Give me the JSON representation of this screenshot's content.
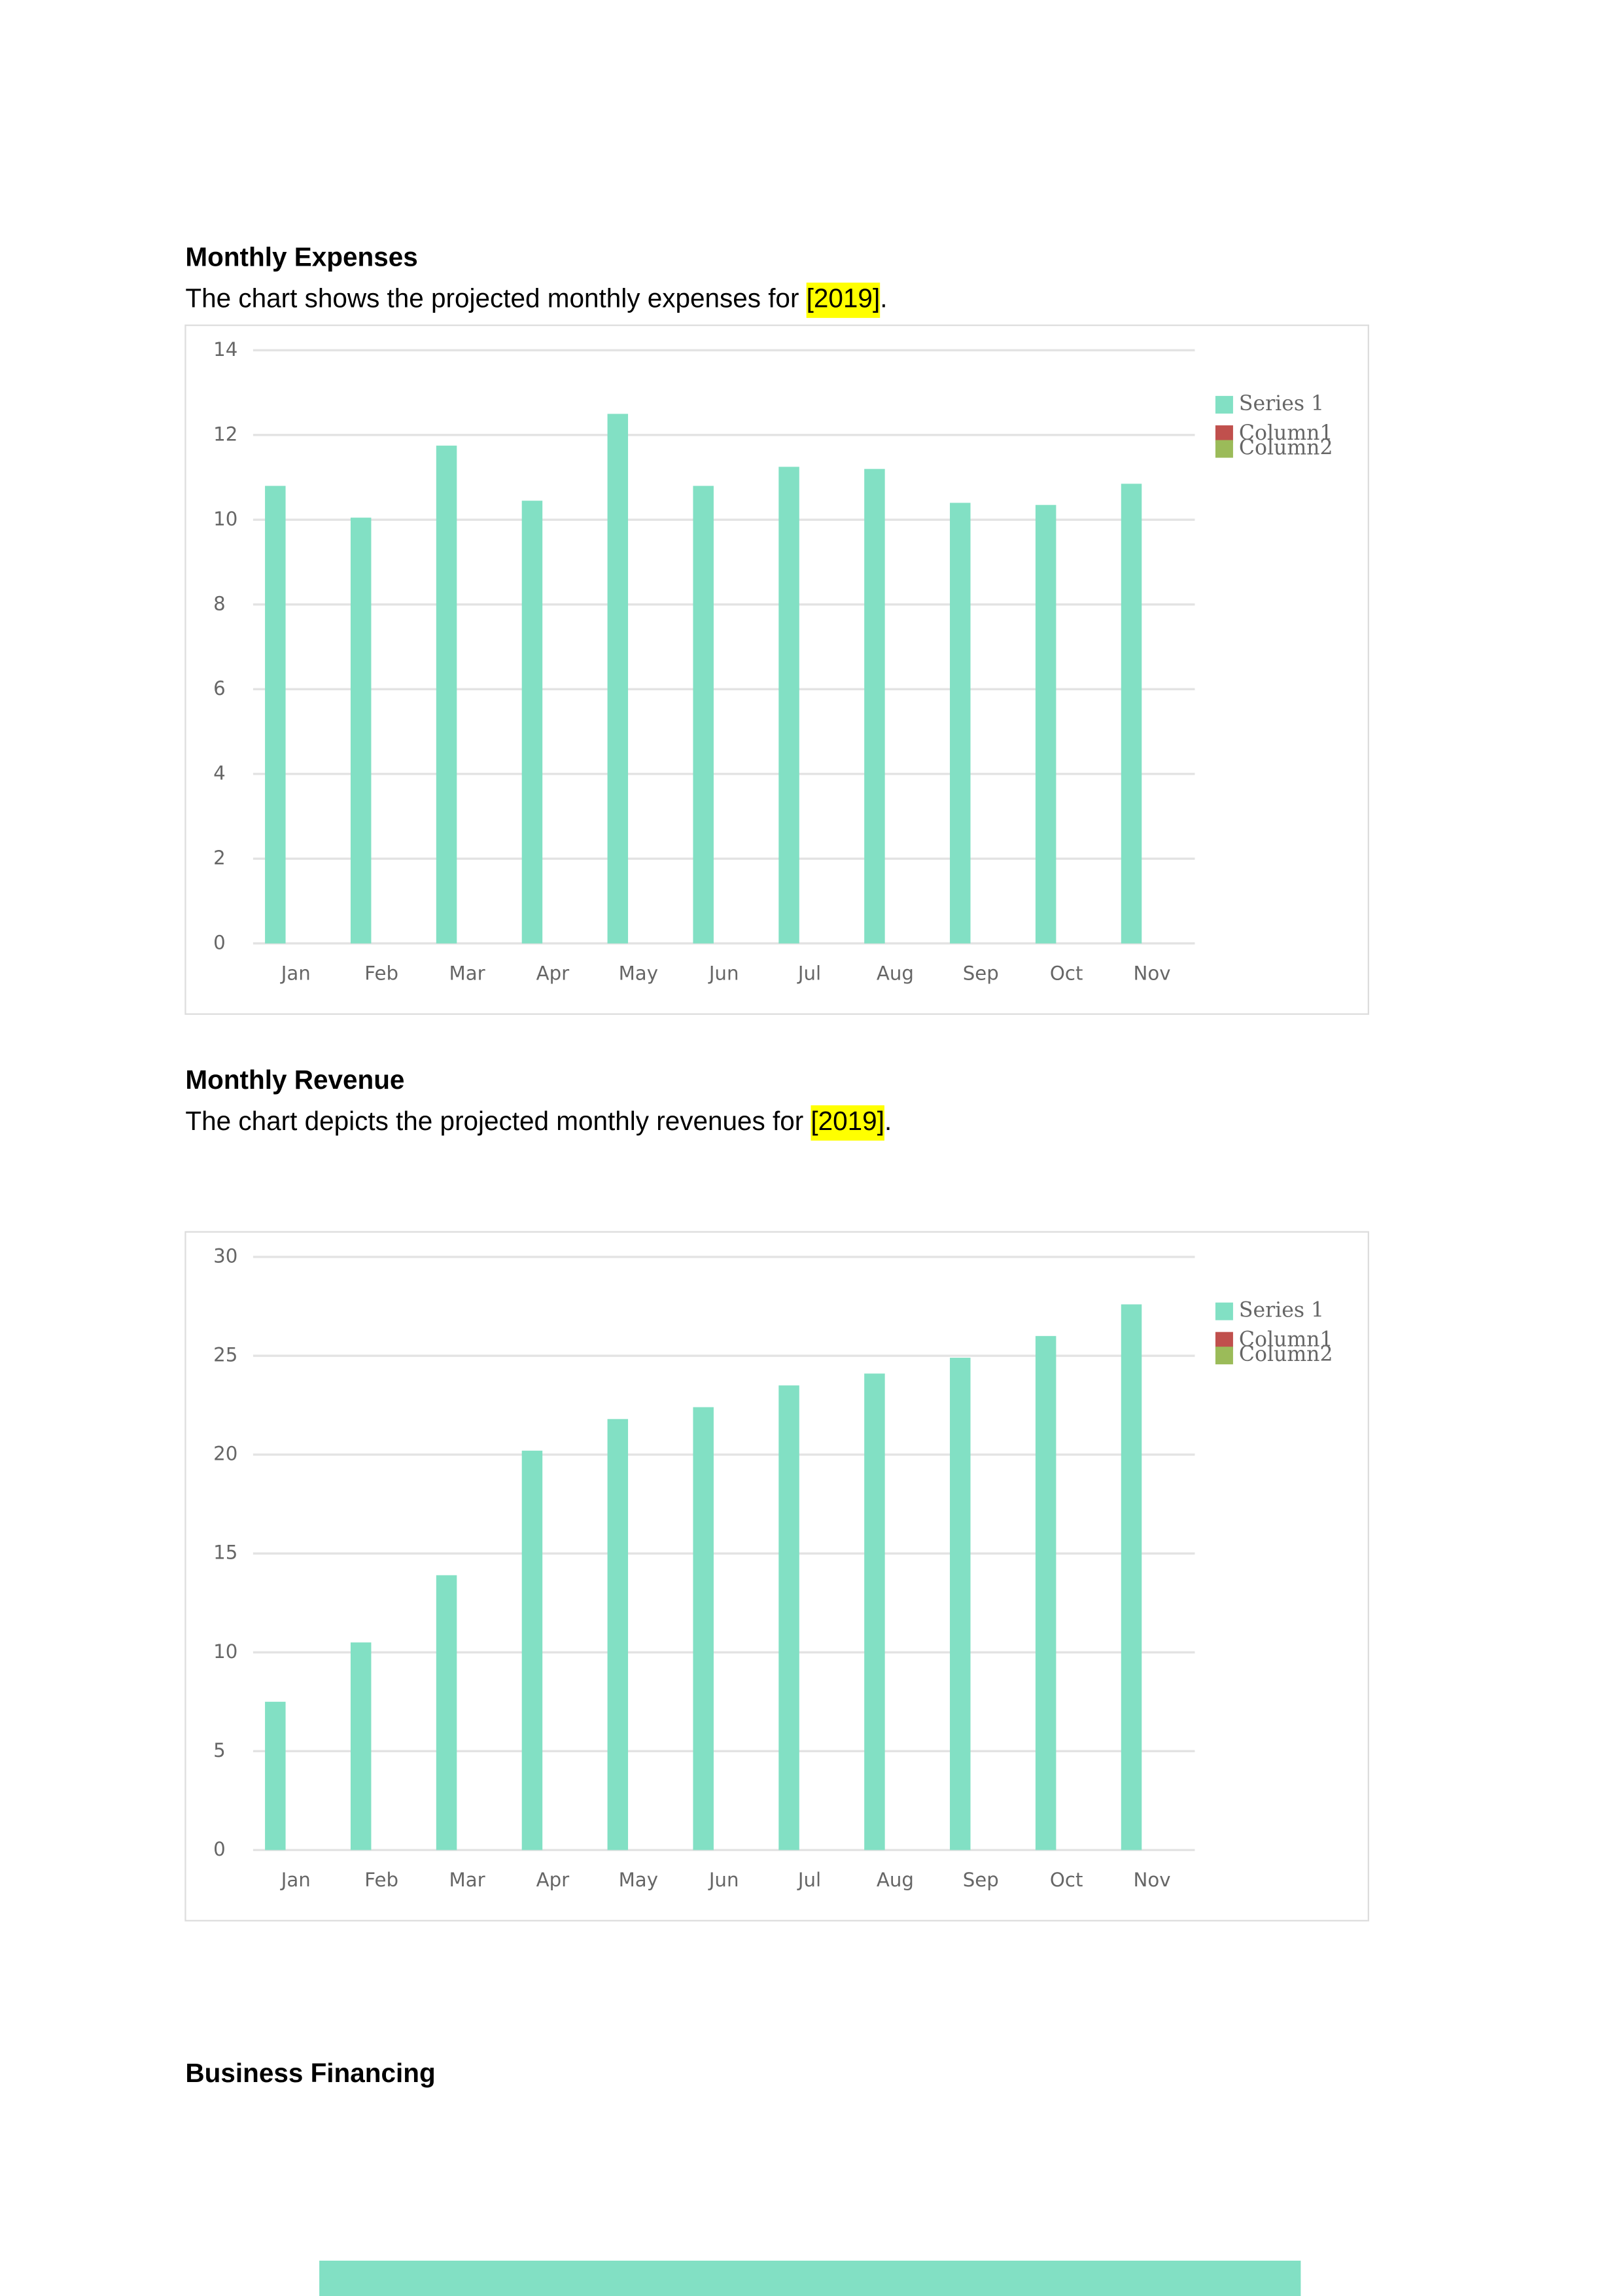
{
  "sections": [
    {
      "heading": "Monthly Expenses",
      "text": "The chart shows the projected monthly expenses for ",
      "highlight": "[2019]",
      "end": "."
    },
    {
      "heading": "Monthly Revenue",
      "text": "The chart depicts the projected monthly revenues for ",
      "highlight": "[2019]",
      "end": "."
    },
    {
      "heading": "Business Financing"
    }
  ],
  "chart_data": [
    {
      "type": "bar",
      "categories": [
        "Jan",
        "Feb",
        "Mar",
        "Apr",
        "May",
        "Jun",
        "Jul",
        "Aug",
        "Sep",
        "Oct",
        "Nov"
      ],
      "series": [
        {
          "name": "Series 1",
          "color": "#82e0c4",
          "values": [
            10.8,
            10.05,
            11.75,
            10.45,
            12.5,
            10.8,
            11.25,
            11.2,
            10.4,
            10.35,
            10.85
          ]
        },
        {
          "name": "Column1",
          "color": "#c0504d",
          "values": [
            null,
            null,
            null,
            null,
            null,
            null,
            null,
            null,
            null,
            null,
            null
          ]
        },
        {
          "name": "Column2",
          "color": "#9bbb59",
          "values": [
            null,
            null,
            null,
            null,
            null,
            null,
            null,
            null,
            null,
            null,
            null
          ]
        }
      ],
      "ylim": [
        0,
        14
      ],
      "yticks": [
        0,
        2,
        4,
        6,
        8,
        10,
        12,
        14
      ],
      "grid": true,
      "legend": "right"
    },
    {
      "type": "bar",
      "categories": [
        "Jan",
        "Feb",
        "Mar",
        "Apr",
        "May",
        "Jun",
        "Jul",
        "Aug",
        "Sep",
        "Oct",
        "Nov"
      ],
      "series": [
        {
          "name": "Series 1",
          "color": "#82e0c4",
          "values": [
            7.5,
            10.5,
            13.9,
            20.2,
            21.8,
            22.4,
            23.5,
            24.1,
            24.9,
            26,
            27.6
          ]
        },
        {
          "name": "Column1",
          "color": "#c0504d",
          "values": [
            null,
            null,
            null,
            null,
            null,
            null,
            null,
            null,
            null,
            null,
            null
          ]
        },
        {
          "name": "Column2",
          "color": "#9bbb59",
          "values": [
            null,
            null,
            null,
            null,
            null,
            null,
            null,
            null,
            null,
            null,
            null
          ]
        }
      ],
      "ylim": [
        0,
        30
      ],
      "yticks": [
        0,
        5,
        10,
        15,
        20,
        25,
        30
      ],
      "grid": true,
      "legend": "right"
    }
  ]
}
